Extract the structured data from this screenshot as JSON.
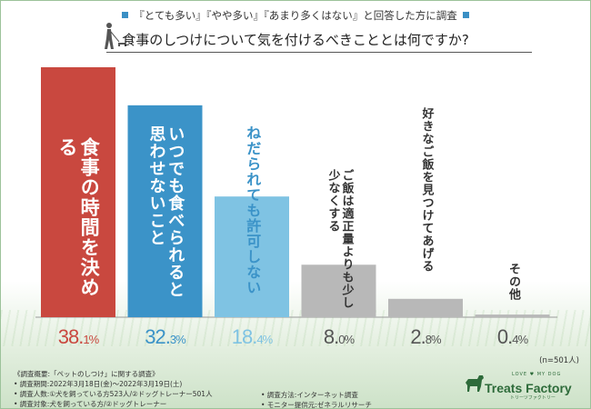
{
  "chart_data": {
    "type": "bar",
    "subtitle": "『とても多い』『やや多い』『あまり多くはない』と回答した方に調査",
    "title": "食事のしつけについて気を付けるべきこととは何ですか?",
    "categories": [
      "食事の時間を決める",
      "いつでも食べられると思わせないこと",
      "ねだられても許可しない",
      "ご飯は適正量よりも少し少なくする",
      "好きなご飯を見つけてあげる",
      "その他"
    ],
    "values": [
      38.1,
      32.3,
      18.4,
      8.0,
      2.8,
      0.4
    ],
    "value_labels": [
      [
        "38.",
        "1%"
      ],
      [
        "32.",
        "3%"
      ],
      [
        "18.",
        "4%"
      ],
      [
        "8.",
        "0%"
      ],
      [
        "2.",
        "8%"
      ],
      [
        "0.",
        "4%"
      ]
    ],
    "ylim": [
      0,
      40
    ],
    "sample_note": "(n=501人)",
    "colors": {
      "bars": [
        "#c9483f",
        "#3b93c8",
        "#7fc3e3",
        "#b8b8b8",
        "#b8b8b8",
        "#b8b8b8"
      ],
      "label_text": [
        "#ffffff",
        "#ffffff",
        "#ffffff",
        "#333333",
        "#333333",
        "#333333"
      ],
      "label_text_on_bar_3": "#3b93c8",
      "pct_text": [
        "#c9483f",
        "#3b93c8",
        "#7fc3e3",
        "#555555",
        "#555555",
        "#555555"
      ]
    }
  },
  "footer": {
    "heading": "《調査概要:「ペットのしつけ」に関する調査》",
    "period": "• 調査期間:2022年3月18日(金)〜2022年3月19日(土)",
    "respondents": "• 調査人数:①犬を飼っている方523人/②ドッグトレーナー501人",
    "target": "• 調査対象:犬を飼っている方/②ドッグトレーナー",
    "method": "• 調査方法:インターネット調査",
    "provider": "• モニター提供元:ゼネラルリサーチ"
  },
  "brand": {
    "name": "Treats Factory",
    "tagline": "LOVE ♥ MY DOG",
    "kana": "トリーツファクトリー"
  }
}
